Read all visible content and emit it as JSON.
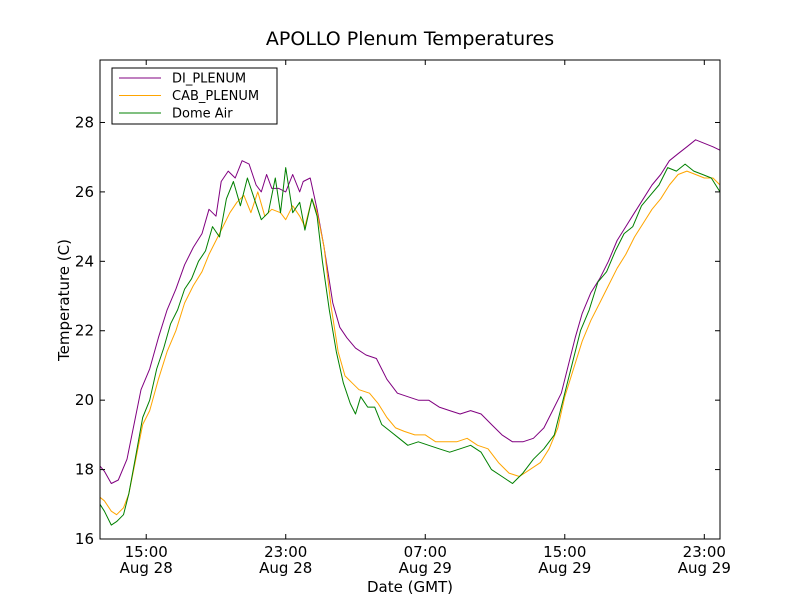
{
  "chart_data": {
    "type": "line",
    "title": "APOLLO Plenum Temperatures",
    "xlabel": "Date (GMT)",
    "ylabel": "Temperature (C)",
    "x_unit": "hours since Aug 28 00:00 GMT",
    "xlim": [
      12.35,
      47.9
    ],
    "ylim": [
      16,
      29.8
    ],
    "grid": false,
    "legend_position": "top-left",
    "x_ticks": [
      {
        "value": 15,
        "line1": "15:00",
        "line2": "Aug 28"
      },
      {
        "value": 23,
        "line1": "23:00",
        "line2": "Aug 28"
      },
      {
        "value": 31,
        "line1": "07:00",
        "line2": "Aug 29"
      },
      {
        "value": 39,
        "line1": "15:00",
        "line2": "Aug 29"
      },
      {
        "value": 47,
        "line1": "23:00",
        "line2": "Aug 29"
      }
    ],
    "y_ticks": [
      16,
      18,
      20,
      22,
      24,
      26,
      28
    ],
    "y_tick_labels": [
      "16",
      "18",
      "20",
      "22",
      "24",
      "26",
      "28"
    ],
    "series": [
      {
        "name": "DI_PLENUM",
        "color": "#800080",
        "points": [
          [
            12.35,
            18.1
          ],
          [
            12.6,
            17.95
          ],
          [
            13.0,
            17.6
          ],
          [
            13.4,
            17.7
          ],
          [
            13.9,
            18.3
          ],
          [
            14.3,
            19.3
          ],
          [
            14.7,
            20.3
          ],
          [
            15.2,
            20.9
          ],
          [
            15.7,
            21.8
          ],
          [
            16.2,
            22.6
          ],
          [
            16.7,
            23.2
          ],
          [
            17.2,
            23.9
          ],
          [
            17.7,
            24.4
          ],
          [
            18.2,
            24.8
          ],
          [
            18.6,
            25.5
          ],
          [
            19.0,
            25.3
          ],
          [
            19.3,
            26.3
          ],
          [
            19.7,
            26.6
          ],
          [
            20.1,
            26.4
          ],
          [
            20.5,
            26.9
          ],
          [
            20.9,
            26.8
          ],
          [
            21.3,
            26.2
          ],
          [
            21.6,
            26.0
          ],
          [
            21.9,
            26.5
          ],
          [
            22.2,
            26.1
          ],
          [
            22.6,
            26.1
          ],
          [
            23.0,
            26.0
          ],
          [
            23.4,
            26.5
          ],
          [
            23.8,
            26.0
          ],
          [
            24.0,
            26.3
          ],
          [
            24.4,
            26.4
          ],
          [
            24.8,
            25.5
          ],
          [
            25.2,
            24.4
          ],
          [
            25.7,
            22.8
          ],
          [
            26.1,
            22.1
          ],
          [
            26.5,
            21.8
          ],
          [
            27.0,
            21.5
          ],
          [
            27.6,
            21.3
          ],
          [
            28.2,
            21.2
          ],
          [
            28.8,
            20.6
          ],
          [
            29.4,
            20.2
          ],
          [
            30.0,
            20.1
          ],
          [
            30.6,
            20.0
          ],
          [
            31.2,
            20.0
          ],
          [
            31.8,
            19.8
          ],
          [
            32.4,
            19.7
          ],
          [
            33.0,
            19.6
          ],
          [
            33.6,
            19.7
          ],
          [
            34.2,
            19.6
          ],
          [
            34.8,
            19.3
          ],
          [
            35.4,
            19.0
          ],
          [
            36.0,
            18.8
          ],
          [
            36.6,
            18.8
          ],
          [
            37.2,
            18.9
          ],
          [
            37.8,
            19.2
          ],
          [
            38.3,
            19.7
          ],
          [
            38.8,
            20.2
          ],
          [
            39.2,
            21.0
          ],
          [
            39.6,
            21.8
          ],
          [
            40.0,
            22.5
          ],
          [
            40.5,
            23.1
          ],
          [
            41.0,
            23.5
          ],
          [
            41.5,
            24.0
          ],
          [
            42.0,
            24.6
          ],
          [
            42.5,
            25.0
          ],
          [
            43.0,
            25.4
          ],
          [
            43.5,
            25.8
          ],
          [
            44.0,
            26.2
          ],
          [
            44.5,
            26.5
          ],
          [
            45.0,
            26.9
          ],
          [
            45.5,
            27.1
          ],
          [
            46.0,
            27.3
          ],
          [
            46.5,
            27.5
          ],
          [
            47.0,
            27.4
          ],
          [
            47.5,
            27.3
          ],
          [
            47.9,
            27.2
          ]
        ]
      },
      {
        "name": "CAB_PLENUM",
        "color": "#ffa500",
        "points": [
          [
            12.35,
            17.2
          ],
          [
            12.6,
            17.1
          ],
          [
            13.0,
            16.8
          ],
          [
            13.3,
            16.7
          ],
          [
            13.7,
            16.9
          ],
          [
            14.0,
            17.3
          ],
          [
            14.4,
            18.3
          ],
          [
            14.8,
            19.3
          ],
          [
            15.2,
            19.7
          ],
          [
            15.7,
            20.6
          ],
          [
            16.2,
            21.4
          ],
          [
            16.7,
            22.0
          ],
          [
            17.2,
            22.8
          ],
          [
            17.7,
            23.3
          ],
          [
            18.2,
            23.7
          ],
          [
            18.6,
            24.2
          ],
          [
            19.0,
            24.6
          ],
          [
            19.4,
            25.0
          ],
          [
            19.8,
            25.4
          ],
          [
            20.2,
            25.7
          ],
          [
            20.6,
            25.9
          ],
          [
            21.0,
            25.4
          ],
          [
            21.4,
            26.0
          ],
          [
            21.8,
            25.3
          ],
          [
            22.2,
            25.5
          ],
          [
            22.7,
            25.4
          ],
          [
            23.0,
            25.2
          ],
          [
            23.4,
            25.6
          ],
          [
            23.8,
            25.3
          ],
          [
            24.1,
            25.0
          ],
          [
            24.5,
            25.8
          ],
          [
            24.8,
            25.4
          ],
          [
            25.2,
            24.4
          ],
          [
            25.6,
            22.7
          ],
          [
            26.0,
            21.4
          ],
          [
            26.4,
            20.7
          ],
          [
            26.8,
            20.5
          ],
          [
            27.2,
            20.3
          ],
          [
            27.8,
            20.2
          ],
          [
            28.3,
            19.9
          ],
          [
            28.8,
            19.5
          ],
          [
            29.3,
            19.2
          ],
          [
            29.8,
            19.1
          ],
          [
            30.4,
            19.0
          ],
          [
            31.0,
            19.0
          ],
          [
            31.6,
            18.8
          ],
          [
            32.2,
            18.8
          ],
          [
            32.8,
            18.8
          ],
          [
            33.4,
            18.9
          ],
          [
            34.0,
            18.7
          ],
          [
            34.6,
            18.6
          ],
          [
            35.2,
            18.2
          ],
          [
            35.8,
            17.9
          ],
          [
            36.4,
            17.8
          ],
          [
            37.0,
            18.0
          ],
          [
            37.6,
            18.2
          ],
          [
            38.1,
            18.6
          ],
          [
            38.6,
            19.2
          ],
          [
            39.0,
            20.1
          ],
          [
            39.5,
            20.9
          ],
          [
            40.0,
            21.7
          ],
          [
            40.5,
            22.3
          ],
          [
            41.0,
            22.8
          ],
          [
            41.5,
            23.3
          ],
          [
            42.0,
            23.8
          ],
          [
            42.5,
            24.2
          ],
          [
            43.0,
            24.7
          ],
          [
            43.5,
            25.1
          ],
          [
            44.0,
            25.5
          ],
          [
            44.5,
            25.8
          ],
          [
            45.0,
            26.2
          ],
          [
            45.5,
            26.5
          ],
          [
            46.0,
            26.6
          ],
          [
            46.5,
            26.5
          ],
          [
            47.0,
            26.4
          ],
          [
            47.5,
            26.4
          ],
          [
            47.9,
            26.2
          ]
        ]
      },
      {
        "name": "Dome Air",
        "color": "#008000",
        "points": [
          [
            12.35,
            17.0
          ],
          [
            12.6,
            16.8
          ],
          [
            13.0,
            16.4
          ],
          [
            13.3,
            16.5
          ],
          [
            13.7,
            16.7
          ],
          [
            14.0,
            17.3
          ],
          [
            14.4,
            18.4
          ],
          [
            14.8,
            19.5
          ],
          [
            15.2,
            20.0
          ],
          [
            15.6,
            20.9
          ],
          [
            16.0,
            21.5
          ],
          [
            16.4,
            22.2
          ],
          [
            16.8,
            22.6
          ],
          [
            17.2,
            23.2
          ],
          [
            17.6,
            23.5
          ],
          [
            18.0,
            24.0
          ],
          [
            18.4,
            24.3
          ],
          [
            18.8,
            25.0
          ],
          [
            19.2,
            24.7
          ],
          [
            19.6,
            25.8
          ],
          [
            20.0,
            26.3
          ],
          [
            20.4,
            25.6
          ],
          [
            20.8,
            26.4
          ],
          [
            21.2,
            25.8
          ],
          [
            21.6,
            25.2
          ],
          [
            22.0,
            25.4
          ],
          [
            22.4,
            26.4
          ],
          [
            22.7,
            25.4
          ],
          [
            23.0,
            26.7
          ],
          [
            23.4,
            25.4
          ],
          [
            23.8,
            25.7
          ],
          [
            24.1,
            24.9
          ],
          [
            24.5,
            25.8
          ],
          [
            24.8,
            25.3
          ],
          [
            25.1,
            24.0
          ],
          [
            25.5,
            22.6
          ],
          [
            25.9,
            21.4
          ],
          [
            26.3,
            20.5
          ],
          [
            26.7,
            19.9
          ],
          [
            27.0,
            19.6
          ],
          [
            27.3,
            20.1
          ],
          [
            27.7,
            19.8
          ],
          [
            28.1,
            19.8
          ],
          [
            28.5,
            19.3
          ],
          [
            29.0,
            19.1
          ],
          [
            29.5,
            18.9
          ],
          [
            30.0,
            18.7
          ],
          [
            30.6,
            18.8
          ],
          [
            31.2,
            18.7
          ],
          [
            31.8,
            18.6
          ],
          [
            32.4,
            18.5
          ],
          [
            33.0,
            18.6
          ],
          [
            33.6,
            18.7
          ],
          [
            34.2,
            18.5
          ],
          [
            34.8,
            18.0
          ],
          [
            35.4,
            17.8
          ],
          [
            36.0,
            17.6
          ],
          [
            36.6,
            17.9
          ],
          [
            37.2,
            18.3
          ],
          [
            37.8,
            18.6
          ],
          [
            38.4,
            19.0
          ],
          [
            38.9,
            20.0
          ],
          [
            39.4,
            21.0
          ],
          [
            39.9,
            22.0
          ],
          [
            40.4,
            22.6
          ],
          [
            40.9,
            23.4
          ],
          [
            41.4,
            23.7
          ],
          [
            41.9,
            24.3
          ],
          [
            42.4,
            24.8
          ],
          [
            42.9,
            25.0
          ],
          [
            43.4,
            25.6
          ],
          [
            43.9,
            25.9
          ],
          [
            44.4,
            26.2
          ],
          [
            44.9,
            26.7
          ],
          [
            45.4,
            26.6
          ],
          [
            45.9,
            26.8
          ],
          [
            46.4,
            26.6
          ],
          [
            46.9,
            26.5
          ],
          [
            47.4,
            26.4
          ],
          [
            47.9,
            26.0
          ]
        ]
      }
    ]
  }
}
